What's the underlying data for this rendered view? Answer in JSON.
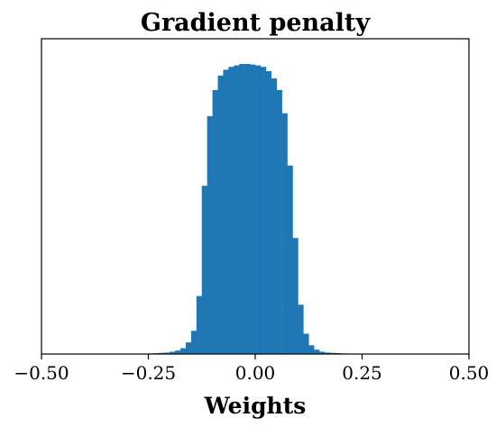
{
  "chart_data": {
    "type": "bar",
    "title": "Gradient penalty",
    "xlabel": "Weights",
    "ylabel": "",
    "xlim": [
      -0.5,
      0.5
    ],
    "ylim": [
      0,
      1.0
    ],
    "xticks": [
      -0.5,
      -0.25,
      0.0,
      0.25,
      0.5
    ],
    "xtick_labels": [
      "−0.50",
      "−0.25",
      "0.00",
      "0.25",
      "0.50"
    ],
    "bin_width": 0.0125,
    "bin_starts": [
      -0.25,
      -0.2375,
      -0.225,
      -0.2125,
      -0.2,
      -0.1875,
      -0.175,
      -0.1625,
      -0.15,
      -0.1375,
      -0.125,
      -0.1125,
      -0.1,
      -0.0875,
      -0.075,
      -0.0625,
      -0.05,
      -0.0375,
      -0.025,
      -0.0125,
      0.0,
      0.0125,
      0.025,
      0.0375,
      0.05,
      0.0625,
      0.075,
      0.0875,
      0.1,
      0.1125,
      0.125,
      0.1375,
      0.15,
      0.1625,
      0.175,
      0.1875,
      0.2,
      0.2125,
      0.225,
      0.2375
    ],
    "values": [
      0.002,
      0.003,
      0.004,
      0.005,
      0.008,
      0.012,
      0.02,
      0.04,
      0.08,
      0.2,
      0.58,
      0.82,
      0.91,
      0.96,
      0.98,
      0.99,
      0.995,
      1.0,
      1.0,
      0.998,
      0.995,
      0.99,
      0.975,
      0.95,
      0.91,
      0.83,
      0.65,
      0.4,
      0.17,
      0.07,
      0.03,
      0.015,
      0.008,
      0.005,
      0.004,
      0.003,
      0.002,
      0.0,
      0.0,
      0.0
    ],
    "bar_color": "#1f77b4",
    "grid": false,
    "legend": "none"
  }
}
